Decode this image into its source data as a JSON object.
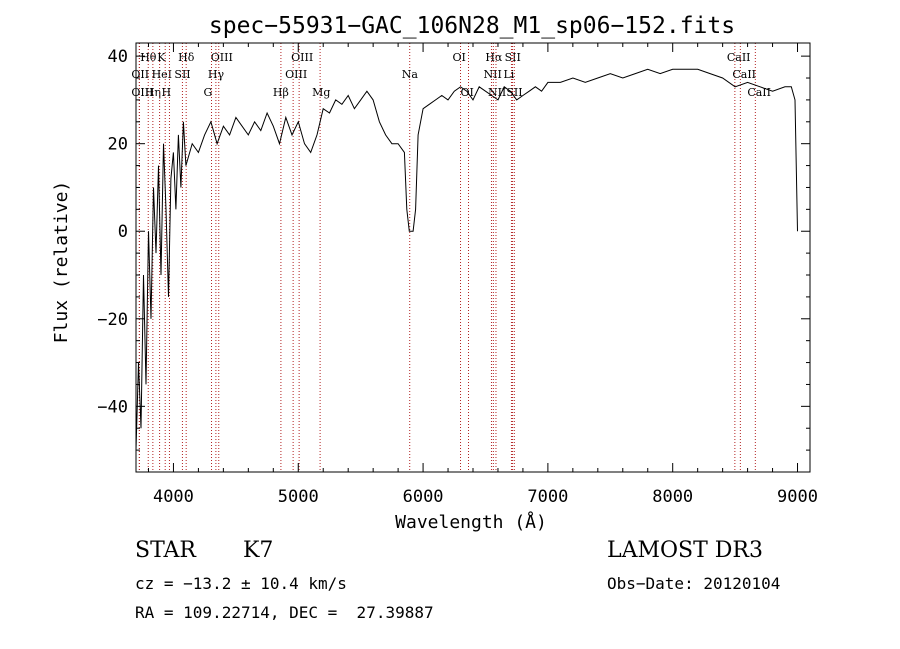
{
  "chart_data": {
    "type": "line",
    "title": "spec−55931−GAC_106N28_M1_sp06−152.fits",
    "xlabel": "Wavelength (Å)",
    "ylabel": "Flux (relative)",
    "xlim": [
      3700,
      9100
    ],
    "ylim": [
      -55,
      43
    ],
    "xticks": [
      4000,
      5000,
      6000,
      7000,
      8000,
      9000
    ],
    "yticks": [
      -40,
      -20,
      0,
      20,
      40
    ],
    "ytick_labels": [
      "−40",
      "−20",
      "0",
      "20",
      "40"
    ],
    "series": [
      {
        "name": "flux",
        "x": [
          3700,
          3720,
          3740,
          3760,
          3780,
          3800,
          3820,
          3840,
          3860,
          3880,
          3900,
          3920,
          3940,
          3960,
          3980,
          4000,
          4020,
          4040,
          4060,
          4080,
          4100,
          4150,
          4200,
          4250,
          4300,
          4350,
          4400,
          4450,
          4500,
          4550,
          4600,
          4650,
          4700,
          4750,
          4800,
          4850,
          4900,
          4950,
          5000,
          5050,
          5100,
          5150,
          5200,
          5250,
          5300,
          5350,
          5400,
          5450,
          5500,
          5550,
          5600,
          5650,
          5700,
          5750,
          5800,
          5850,
          5870,
          5890,
          5900,
          5920,
          5940,
          5960,
          6000,
          6050,
          6100,
          6150,
          6200,
          6250,
          6300,
          6350,
          6400,
          6450,
          6500,
          6550,
          6600,
          6650,
          6700,
          6750,
          6800,
          6850,
          6900,
          6950,
          7000,
          7100,
          7200,
          7300,
          7400,
          7500,
          7600,
          7700,
          7800,
          7900,
          8000,
          8100,
          8200,
          8300,
          8400,
          8500,
          8600,
          8700,
          8800,
          8900,
          8950,
          8980,
          9000
        ],
        "y": [
          -50,
          -30,
          -45,
          -10,
          -35,
          0,
          -20,
          10,
          -5,
          15,
          -10,
          20,
          5,
          -15,
          12,
          18,
          5,
          22,
          10,
          25,
          15,
          20,
          18,
          22,
          25,
          20,
          24,
          22,
          26,
          24,
          22,
          25,
          23,
          27,
          24,
          20,
          26,
          22,
          25,
          20,
          18,
          22,
          28,
          27,
          30,
          29,
          31,
          28,
          30,
          32,
          30,
          25,
          22,
          20,
          20,
          18,
          5,
          0,
          0,
          0,
          5,
          22,
          28,
          29,
          30,
          31,
          30,
          32,
          33,
          32,
          30,
          33,
          32,
          31,
          30,
          33,
          32,
          30,
          31,
          32,
          33,
          32,
          34,
          34,
          35,
          34,
          35,
          36,
          35,
          36,
          37,
          36,
          37,
          37,
          37,
          36,
          35,
          33,
          34,
          33,
          32,
          33,
          33,
          30,
          0
        ]
      }
    ],
    "lines": [
      {
        "name": "Hθ",
        "wl": 3798,
        "row": 1
      },
      {
        "name": "OII",
        "wl": 3727,
        "row": 2
      },
      {
        "name": "OIII",
        "wl": 3727,
        "row": 3
      },
      {
        "name": "Hη",
        "wl": 3835,
        "row": 3
      },
      {
        "name": "HeI",
        "wl": 3889,
        "row": 2
      },
      {
        "name": "K",
        "wl": 3934,
        "row": 1
      },
      {
        "name": "SII",
        "wl": 4072,
        "row": 2
      },
      {
        "name": "H",
        "wl": 3968,
        "row": 3
      },
      {
        "name": "Hδ",
        "wl": 4102,
        "row": 1
      },
      {
        "name": "OIII",
        "wl": 4363,
        "row": 1
      },
      {
        "name": "Hγ",
        "wl": 4340,
        "row": 2
      },
      {
        "name": "G",
        "wl": 4305,
        "row": 3
      },
      {
        "name": "Hβ",
        "wl": 4861,
        "row": 3
      },
      {
        "name": "OIII",
        "wl": 4959,
        "row": 2
      },
      {
        "name": "OIII",
        "wl": 5007,
        "row": 1
      },
      {
        "name": "Mg",
        "wl": 5175,
        "row": 3
      },
      {
        "name": "Na",
        "wl": 5893,
        "row": 2
      },
      {
        "name": "OI",
        "wl": 6300,
        "row": 1
      },
      {
        "name": "OI",
        "wl": 6364,
        "row": 3
      },
      {
        "name": "Hα",
        "wl": 6563,
        "row": 1
      },
      {
        "name": "NII",
        "wl": 6548,
        "row": 2
      },
      {
        "name": "NII",
        "wl": 6584,
        "row": 3
      },
      {
        "name": "SII",
        "wl": 6717,
        "row": 1
      },
      {
        "name": "Li",
        "wl": 6708,
        "row": 2
      },
      {
        "name": "SII",
        "wl": 6731,
        "row": 3
      },
      {
        "name": "CaII",
        "wl": 8498,
        "row": 1
      },
      {
        "name": "CaII",
        "wl": 8542,
        "row": 2
      },
      {
        "name": "CaII",
        "wl": 8662,
        "row": 3
      }
    ]
  },
  "info": {
    "class": "STAR",
    "subclass": "K7",
    "survey": "LAMOST DR3",
    "cz": "cz = −13.2 ± 10.4 km/s",
    "obs_date": "Obs−Date: 20120104",
    "radec": "RA = 109.22714, DEC =  27.39887"
  },
  "colors": {
    "line_marker": "#b22222",
    "trace": "#000000"
  }
}
